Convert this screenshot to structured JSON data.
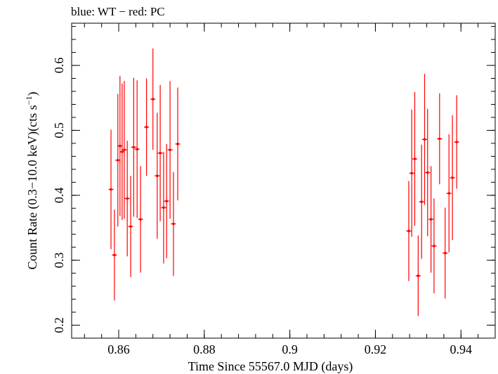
{
  "chart_data": {
    "type": "scatter",
    "title": "blue: WT − red: PC",
    "xlabel": "Time Since 55567.0 MJD (days)",
    "ylabel_main": "Count Rate (0.3−10.0 keV)(cts s",
    "ylabel_sup": "−1",
    "ylabel_close": ")",
    "xlim": [
      0.849,
      0.948
    ],
    "ylim": [
      0.18,
      0.665
    ],
    "xticks": [
      0.86,
      0.88,
      0.9,
      0.92,
      0.94
    ],
    "xtick_labels": [
      "0.86",
      "0.88",
      "0.9",
      "0.92",
      "0.94"
    ],
    "yticks": [
      0.2,
      0.3,
      0.4,
      0.5,
      0.6
    ],
    "ytick_labels": [
      "0.2",
      "0.3",
      "0.4",
      "0.5",
      "0.6"
    ],
    "grid": false,
    "series": [
      {
        "color": "#ff0000",
        "points": [
          {
            "x": 0.8582,
            "y": 0.409,
            "err": 0.092
          },
          {
            "x": 0.859,
            "y": 0.308,
            "err": 0.07
          },
          {
            "x": 0.8598,
            "y": 0.454,
            "err": 0.102
          },
          {
            "x": 0.8603,
            "y": 0.476,
            "err": 0.108
          },
          {
            "x": 0.8608,
            "y": 0.467,
            "err": 0.105
          },
          {
            "x": 0.8613,
            "y": 0.47,
            "err": 0.106
          },
          {
            "x": 0.862,
            "y": 0.395,
            "err": 0.089
          },
          {
            "x": 0.8628,
            "y": 0.352,
            "err": 0.078
          },
          {
            "x": 0.8635,
            "y": 0.474,
            "err": 0.107
          },
          {
            "x": 0.8643,
            "y": 0.471,
            "err": 0.106
          },
          {
            "x": 0.8651,
            "y": 0.363,
            "err": 0.082
          },
          {
            "x": 0.8665,
            "y": 0.505,
            "err": 0.075
          },
          {
            "x": 0.868,
            "y": 0.548,
            "err": 0.078
          },
          {
            "x": 0.869,
            "y": 0.43,
            "err": 0.097
          },
          {
            "x": 0.8697,
            "y": 0.465,
            "err": 0.105
          },
          {
            "x": 0.8705,
            "y": 0.381,
            "err": 0.086
          },
          {
            "x": 0.8712,
            "y": 0.391,
            "err": 0.088
          },
          {
            "x": 0.872,
            "y": 0.47,
            "err": 0.106
          },
          {
            "x": 0.8728,
            "y": 0.356,
            "err": 0.08
          },
          {
            "x": 0.8738,
            "y": 0.479,
            "err": 0.087
          },
          {
            "x": 0.9278,
            "y": 0.345,
            "err": 0.077
          },
          {
            "x": 0.9285,
            "y": 0.434,
            "err": 0.098
          },
          {
            "x": 0.9292,
            "y": 0.456,
            "err": 0.103
          },
          {
            "x": 0.93,
            "y": 0.276,
            "err": 0.062
          },
          {
            "x": 0.9308,
            "y": 0.39,
            "err": 0.088
          },
          {
            "x": 0.9315,
            "y": 0.486,
            "err": 0.101
          },
          {
            "x": 0.9322,
            "y": 0.435,
            "err": 0.098
          },
          {
            "x": 0.933,
            "y": 0.363,
            "err": 0.082
          },
          {
            "x": 0.9337,
            "y": 0.322,
            "err": 0.073
          },
          {
            "x": 0.935,
            "y": 0.487,
            "err": 0.07
          },
          {
            "x": 0.9363,
            "y": 0.311,
            "err": 0.07
          },
          {
            "x": 0.9372,
            "y": 0.403,
            "err": 0.091
          },
          {
            "x": 0.938,
            "y": 0.427,
            "err": 0.096
          },
          {
            "x": 0.939,
            "y": 0.482,
            "err": 0.072
          }
        ]
      }
    ]
  }
}
